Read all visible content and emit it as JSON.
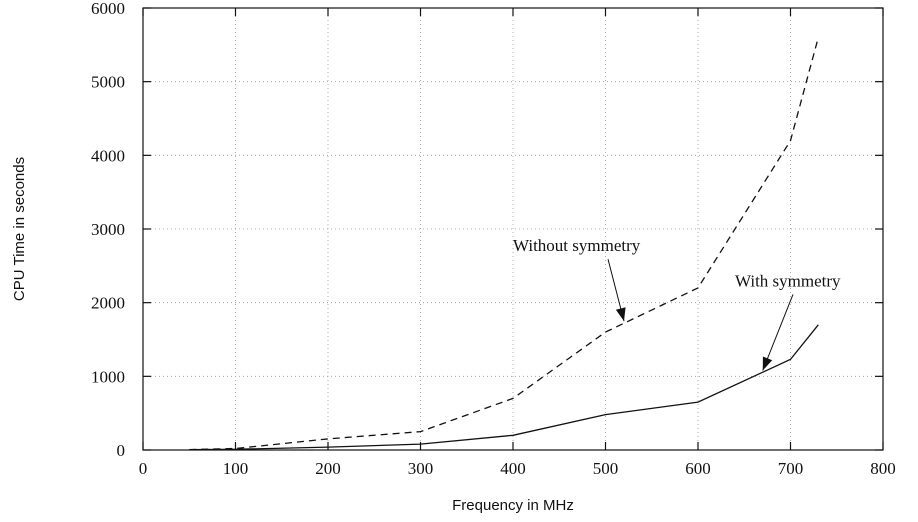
{
  "chart_data": {
    "type": "line",
    "title": "",
    "xlabel": "Frequency in MHz",
    "ylabel": "CPU Time in seconds",
    "xlim": [
      0,
      800
    ],
    "ylim": [
      0,
      6000
    ],
    "x_ticks": [
      0,
      100,
      200,
      300,
      400,
      500,
      600,
      700,
      800
    ],
    "y_ticks": [
      0,
      1000,
      2000,
      3000,
      4000,
      5000,
      6000
    ],
    "grid": true,
    "series": [
      {
        "name": "Without symmetry",
        "style": "dashed",
        "points": [
          [
            50,
            5
          ],
          [
            100,
            20
          ],
          [
            200,
            150
          ],
          [
            300,
            250
          ],
          [
            400,
            700
          ],
          [
            500,
            1600
          ],
          [
            600,
            2200
          ],
          [
            700,
            4200
          ],
          [
            730,
            5600
          ]
        ]
      },
      {
        "name": "With symmetry",
        "style": "solid",
        "points": [
          [
            50,
            5
          ],
          [
            100,
            10
          ],
          [
            200,
            40
          ],
          [
            300,
            80
          ],
          [
            400,
            200
          ],
          [
            500,
            480
          ],
          [
            600,
            650
          ],
          [
            700,
            1230
          ],
          [
            730,
            1700
          ]
        ]
      }
    ],
    "annotations": [
      {
        "text": "Without symmetry",
        "series": 0,
        "text_at": [
          400,
          2700
        ],
        "arrow_to": [
          520,
          1750
        ]
      },
      {
        "text": "With symmetry",
        "series": 1,
        "text_at": [
          640,
          2220
        ],
        "arrow_to": [
          670,
          1080
        ]
      }
    ]
  }
}
